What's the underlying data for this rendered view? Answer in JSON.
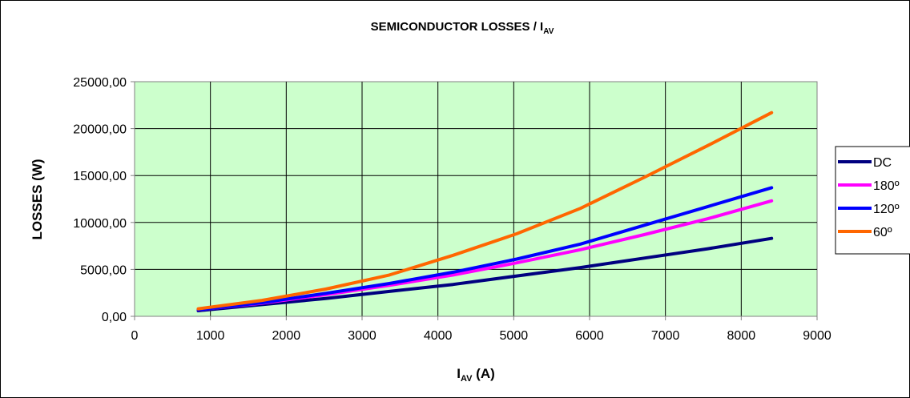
{
  "chart_data": {
    "type": "line",
    "title": "SEMICONDUCTOR LOSSES / I",
    "title_sub": "AV",
    "xlabel": "I",
    "xlabel_sub": "AV",
    "xlabel_unit": " (A)",
    "ylabel": "LOSSES (W)",
    "xlim": [
      0,
      9000
    ],
    "ylim": [
      0,
      25000
    ],
    "x_ticks": [
      "0",
      "1000",
      "2000",
      "3000",
      "4000",
      "5000",
      "6000",
      "7000",
      "8000",
      "9000"
    ],
    "y_ticks": [
      "0,00",
      "5000,00",
      "10000,00",
      "15000,00",
      "20000,00",
      "25000,00"
    ],
    "grid": true,
    "plot_background": "#CCFFCC",
    "legend_position": "right",
    "series": [
      {
        "name": "DC",
        "color": "#000080",
        "x": [
          840,
          1680,
          2520,
          3360,
          4200,
          5040,
          5880,
          6720,
          7560,
          8400
        ],
        "y": [
          600,
          1250,
          1900,
          2650,
          3400,
          4300,
          5200,
          6200,
          7200,
          8300
        ]
      },
      {
        "name": "180º",
        "color": "#FF00FF",
        "x": [
          840,
          1680,
          2520,
          3360,
          4200,
          5040,
          5880,
          6720,
          7560,
          8400
        ],
        "y": [
          700,
          1400,
          2300,
          3300,
          4400,
          5700,
          7100,
          8700,
          10400,
          12300
        ]
      },
      {
        "name": "120º",
        "color": "#0000FF",
        "x": [
          840,
          1680,
          2520,
          3360,
          4200,
          5040,
          5880,
          6720,
          7560,
          8400
        ],
        "y": [
          700,
          1450,
          2450,
          3500,
          4700,
          6100,
          7700,
          9700,
          11700,
          13700
        ]
      },
      {
        "name": "60º",
        "color": "#FF6600",
        "x": [
          840,
          1680,
          2520,
          3360,
          4200,
          5040,
          5880,
          6720,
          7560,
          8400
        ],
        "y": [
          800,
          1700,
          2900,
          4400,
          6500,
          8800,
          11500,
          14800,
          18200,
          21700
        ]
      }
    ]
  }
}
